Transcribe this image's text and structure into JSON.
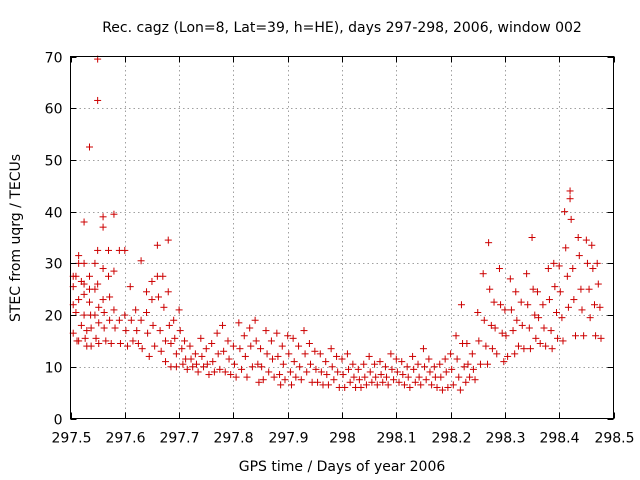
{
  "chart_data": {
    "type": "scatter",
    "title": "Rec. cagz (Lon=8, Lat=39, h=HE), days 297-298, 2006, window 002",
    "xlabel": "GPS time / Days of year 2006",
    "ylabel": "STEC from uqrg / TECUs",
    "xlim": [
      297.5,
      298.5
    ],
    "ylim": [
      0,
      70
    ],
    "xticks": [
      "297.5",
      "297.6",
      "297.7",
      "297.8",
      "297.9",
      "298",
      "298.1",
      "298.2",
      "298.3",
      "298.4",
      "298.5"
    ],
    "yticks": [
      "0",
      "10",
      "20",
      "30",
      "40",
      "50",
      "60",
      "70"
    ],
    "grid": true,
    "marker": "+",
    "color": "#cc0000",
    "points": [
      [
        297.505,
        27.5
      ],
      [
        297.505,
        25.5
      ],
      [
        297.505,
        22.0
      ],
      [
        297.505,
        16.5
      ],
      [
        297.51,
        27.5
      ],
      [
        297.51,
        20.5
      ],
      [
        297.512,
        15.0
      ],
      [
        297.515,
        31.5
      ],
      [
        297.515,
        30.0
      ],
      [
        297.515,
        23.0
      ],
      [
        297.515,
        15.0
      ],
      [
        297.52,
        26.5
      ],
      [
        297.52,
        18.0
      ],
      [
        297.525,
        38.0
      ],
      [
        297.525,
        30.0
      ],
      [
        297.525,
        26.0
      ],
      [
        297.525,
        24.0
      ],
      [
        297.525,
        20.0
      ],
      [
        297.527,
        15.5
      ],
      [
        297.53,
        17.0
      ],
      [
        297.53,
        14.0
      ],
      [
        297.535,
        52.5
      ],
      [
        297.535,
        27.5
      ],
      [
        297.535,
        25.0
      ],
      [
        297.535,
        22.5
      ],
      [
        297.537,
        20.0
      ],
      [
        297.538,
        17.5
      ],
      [
        297.538,
        14.0
      ],
      [
        297.545,
        30.0
      ],
      [
        297.545,
        25.0
      ],
      [
        297.545,
        20.0
      ],
      [
        297.547,
        15.5
      ],
      [
        297.55,
        69.5
      ],
      [
        297.55,
        61.5
      ],
      [
        297.55,
        32.5
      ],
      [
        297.55,
        26.0
      ],
      [
        297.552,
        21.5
      ],
      [
        297.552,
        18.5
      ],
      [
        297.552,
        14.5
      ],
      [
        297.56,
        39.0
      ],
      [
        297.56,
        37.0
      ],
      [
        297.56,
        29.0
      ],
      [
        297.56,
        23.0
      ],
      [
        297.562,
        20.5
      ],
      [
        297.562,
        17.5
      ],
      [
        297.565,
        15.0
      ],
      [
        297.57,
        32.5
      ],
      [
        297.57,
        27.5
      ],
      [
        297.572,
        23.5
      ],
      [
        297.572,
        19.0
      ],
      [
        297.575,
        14.5
      ],
      [
        297.58,
        39.5
      ],
      [
        297.58,
        28.5
      ],
      [
        297.58,
        21.0
      ],
      [
        297.582,
        17.5
      ],
      [
        297.59,
        32.5
      ],
      [
        297.59,
        19.0
      ],
      [
        297.592,
        14.5
      ],
      [
        297.6,
        32.5
      ],
      [
        297.6,
        20.0
      ],
      [
        297.602,
        17.0
      ],
      [
        297.605,
        14.0
      ],
      [
        297.61,
        25.5
      ],
      [
        297.612,
        19.0
      ],
      [
        297.615,
        15.0
      ],
      [
        297.62,
        21.0
      ],
      [
        297.622,
        17.0
      ],
      [
        297.625,
        14.5
      ],
      [
        297.63,
        30.5
      ],
      [
        297.63,
        19.0
      ],
      [
        297.632,
        13.5
      ],
      [
        297.64,
        24.5
      ],
      [
        297.64,
        20.5
      ],
      [
        297.642,
        16.5
      ],
      [
        297.645,
        12.0
      ],
      [
        297.65,
        26.5
      ],
      [
        297.65,
        23.0
      ],
      [
        297.652,
        18.0
      ],
      [
        297.655,
        14.0
      ],
      [
        297.66,
        33.5
      ],
      [
        297.66,
        27.5
      ],
      [
        297.662,
        23.5
      ],
      [
        297.665,
        17.0
      ],
      [
        297.667,
        13.0
      ],
      [
        297.67,
        27.5
      ],
      [
        297.672,
        21.5
      ],
      [
        297.675,
        15.0
      ],
      [
        297.675,
        11.0
      ],
      [
        297.68,
        34.5
      ],
      [
        297.68,
        24.5
      ],
      [
        297.682,
        18.0
      ],
      [
        297.685,
        14.5
      ],
      [
        297.685,
        10.0
      ],
      [
        297.69,
        19.0
      ],
      [
        297.692,
        15.5
      ],
      [
        297.695,
        12.5
      ],
      [
        297.695,
        10.0
      ],
      [
        297.7,
        21.0
      ],
      [
        297.702,
        17.0
      ],
      [
        297.705,
        13.5
      ],
      [
        297.707,
        10.5
      ],
      [
        297.71,
        15.0
      ],
      [
        297.712,
        11.5
      ],
      [
        297.715,
        9.5
      ],
      [
        297.72,
        14.0
      ],
      [
        297.722,
        11.5
      ],
      [
        297.725,
        10.0
      ],
      [
        297.73,
        12.5
      ],
      [
        297.732,
        10.5
      ],
      [
        297.735,
        9.0
      ],
      [
        297.74,
        15.5
      ],
      [
        297.742,
        12.0
      ],
      [
        297.745,
        10.0
      ],
      [
        297.75,
        13.5
      ],
      [
        297.752,
        10.5
      ],
      [
        297.755,
        8.5
      ],
      [
        297.76,
        14.5
      ],
      [
        297.762,
        11.0
      ],
      [
        297.765,
        9.0
      ],
      [
        297.77,
        16.5
      ],
      [
        297.772,
        12.5
      ],
      [
        297.775,
        9.5
      ],
      [
        297.78,
        18.0
      ],
      [
        297.782,
        13.0
      ],
      [
        297.785,
        9.0
      ],
      [
        297.79,
        15.0
      ],
      [
        297.792,
        11.5
      ],
      [
        297.795,
        8.5
      ],
      [
        297.8,
        14.0
      ],
      [
        297.802,
        10.5
      ],
      [
        297.805,
        8.0
      ],
      [
        297.81,
        18.5
      ],
      [
        297.812,
        13.5
      ],
      [
        297.815,
        9.5
      ],
      [
        297.82,
        16.0
      ],
      [
        297.822,
        12.0
      ],
      [
        297.825,
        8.0
      ],
      [
        297.83,
        17.5
      ],
      [
        297.832,
        14.0
      ],
      [
        297.835,
        10.0
      ],
      [
        297.84,
        19.0
      ],
      [
        297.842,
        15.0
      ],
      [
        297.845,
        10.5
      ],
      [
        297.847,
        7.0
      ],
      [
        297.85,
        13.5
      ],
      [
        297.852,
        10.0
      ],
      [
        297.855,
        7.5
      ],
      [
        297.86,
        17.0
      ],
      [
        297.862,
        12.5
      ],
      [
        297.865,
        9.0
      ],
      [
        297.87,
        15.0
      ],
      [
        297.872,
        11.5
      ],
      [
        297.875,
        8.0
      ],
      [
        297.88,
        16.5
      ],
      [
        297.882,
        12.0
      ],
      [
        297.885,
        8.5
      ],
      [
        297.887,
        6.5
      ],
      [
        297.89,
        14.0
      ],
      [
        297.892,
        10.5
      ],
      [
        297.895,
        7.5
      ],
      [
        297.9,
        16.0
      ],
      [
        297.902,
        12.5
      ],
      [
        297.905,
        9.0
      ],
      [
        297.907,
        6.5
      ],
      [
        297.91,
        15.5
      ],
      [
        297.912,
        11.0
      ],
      [
        297.915,
        8.0
      ],
      [
        297.92,
        14.0
      ],
      [
        297.922,
        10.0
      ],
      [
        297.925,
        7.5
      ],
      [
        297.93,
        17.0
      ],
      [
        297.932,
        12.5
      ],
      [
        297.935,
        9.0
      ],
      [
        297.94,
        14.5
      ],
      [
        297.942,
        10.5
      ],
      [
        297.945,
        7.0
      ],
      [
        297.95,
        13.0
      ],
      [
        297.952,
        9.5
      ],
      [
        297.955,
        7.0
      ],
      [
        297.96,
        12.5
      ],
      [
        297.962,
        9.0
      ],
      [
        297.965,
        6.5
      ],
      [
        297.97,
        11.0
      ],
      [
        297.972,
        8.5
      ],
      [
        297.975,
        6.5
      ],
      [
        297.98,
        13.5
      ],
      [
        297.982,
        10.0
      ],
      [
        297.985,
        7.5
      ],
      [
        297.99,
        12.0
      ],
      [
        297.992,
        9.0
      ],
      [
        297.995,
        6.0
      ],
      [
        298.0,
        11.5
      ],
      [
        298.002,
        8.5
      ],
      [
        298.005,
        6.0
      ],
      [
        298.01,
        12.5
      ],
      [
        298.012,
        9.5
      ],
      [
        298.015,
        7.0
      ],
      [
        298.02,
        10.5
      ],
      [
        298.022,
        8.0
      ],
      [
        298.025,
        6.0
      ],
      [
        298.03,
        9.5
      ],
      [
        298.032,
        7.5
      ],
      [
        298.035,
        6.0
      ],
      [
        298.04,
        10.5
      ],
      [
        298.042,
        8.0
      ],
      [
        298.045,
        6.5
      ],
      [
        298.05,
        12.0
      ],
      [
        298.052,
        9.0
      ],
      [
        298.055,
        7.0
      ],
      [
        298.06,
        10.5
      ],
      [
        298.062,
        8.0
      ],
      [
        298.065,
        6.5
      ],
      [
        298.07,
        11.0
      ],
      [
        298.072,
        8.5
      ],
      [
        298.075,
        7.0
      ],
      [
        298.08,
        10.0
      ],
      [
        298.082,
        8.0
      ],
      [
        298.085,
        6.5
      ],
      [
        298.09,
        12.5
      ],
      [
        298.092,
        9.5
      ],
      [
        298.095,
        7.5
      ],
      [
        298.1,
        11.5
      ],
      [
        298.102,
        9.0
      ],
      [
        298.105,
        7.0
      ],
      [
        298.11,
        11.0
      ],
      [
        298.112,
        8.5
      ],
      [
        298.115,
        6.5
      ],
      [
        298.12,
        10.0
      ],
      [
        298.122,
        8.0
      ],
      [
        298.125,
        6.0
      ],
      [
        298.13,
        12.0
      ],
      [
        298.132,
        9.5
      ],
      [
        298.135,
        7.0
      ],
      [
        298.14,
        10.5
      ],
      [
        298.142,
        8.0
      ],
      [
        298.145,
        6.5
      ],
      [
        298.15,
        13.5
      ],
      [
        298.152,
        10.0
      ],
      [
        298.155,
        7.5
      ],
      [
        298.16,
        11.5
      ],
      [
        298.162,
        9.0
      ],
      [
        298.165,
        6.5
      ],
      [
        298.17,
        10.0
      ],
      [
        298.172,
        8.0
      ],
      [
        298.175,
        6.0
      ],
      [
        298.18,
        10.5
      ],
      [
        298.182,
        8.0
      ],
      [
        298.185,
        5.5
      ],
      [
        298.19,
        11.5
      ],
      [
        298.192,
        9.0
      ],
      [
        298.195,
        6.0
      ],
      [
        298.2,
        12.5
      ],
      [
        298.202,
        9.5
      ],
      [
        298.205,
        6.5
      ],
      [
        298.21,
        16.0
      ],
      [
        298.212,
        11.5
      ],
      [
        298.215,
        8.0
      ],
      [
        298.218,
        5.5
      ],
      [
        298.22,
        22.0
      ],
      [
        298.222,
        14.5
      ],
      [
        298.225,
        10.0
      ],
      [
        298.228,
        7.0
      ],
      [
        298.23,
        14.5
      ],
      [
        298.232,
        10.5
      ],
      [
        298.235,
        8.0
      ],
      [
        298.24,
        12.5
      ],
      [
        298.242,
        9.5
      ],
      [
        298.245,
        7.5
      ],
      [
        298.25,
        20.5
      ],
      [
        298.252,
        15.0
      ],
      [
        298.255,
        10.5
      ],
      [
        298.26,
        28.0
      ],
      [
        298.262,
        19.0
      ],
      [
        298.265,
        14.0
      ],
      [
        298.268,
        10.5
      ],
      [
        298.27,
        34.0
      ],
      [
        298.272,
        25.0
      ],
      [
        298.275,
        18.0
      ],
      [
        298.277,
        13.5
      ],
      [
        298.28,
        22.5
      ],
      [
        298.282,
        17.5
      ],
      [
        298.285,
        12.5
      ],
      [
        298.29,
        29.0
      ],
      [
        298.292,
        22.0
      ],
      [
        298.295,
        16.5
      ],
      [
        298.298,
        11.0
      ],
      [
        298.3,
        21.0
      ],
      [
        298.302,
        16.0
      ],
      [
        298.305,
        12.0
      ],
      [
        298.31,
        27.0
      ],
      [
        298.312,
        21.0
      ],
      [
        298.315,
        17.0
      ],
      [
        298.318,
        12.5
      ],
      [
        298.32,
        24.5
      ],
      [
        298.322,
        19.0
      ],
      [
        298.325,
        14.0
      ],
      [
        298.33,
        22.5
      ],
      [
        298.332,
        18.0
      ],
      [
        298.335,
        13.5
      ],
      [
        298.34,
        28.0
      ],
      [
        298.342,
        22.0
      ],
      [
        298.345,
        17.5
      ],
      [
        298.347,
        13.5
      ],
      [
        298.35,
        35.0
      ],
      [
        298.352,
        25.0
      ],
      [
        298.355,
        20.0
      ],
      [
        298.357,
        15.5
      ],
      [
        298.36,
        24.5
      ],
      [
        298.362,
        19.5
      ],
      [
        298.365,
        14.5
      ],
      [
        298.37,
        22.0
      ],
      [
        298.372,
        17.5
      ],
      [
        298.375,
        14.0
      ],
      [
        298.38,
        29.0
      ],
      [
        298.382,
        23.0
      ],
      [
        298.385,
        17.0
      ],
      [
        298.387,
        13.5
      ],
      [
        298.39,
        30.0
      ],
      [
        298.392,
        25.5
      ],
      [
        298.395,
        20.5
      ],
      [
        298.397,
        15.5
      ],
      [
        298.4,
        29.5
      ],
      [
        298.402,
        24.5
      ],
      [
        298.405,
        19.5
      ],
      [
        298.407,
        15.0
      ],
      [
        298.41,
        40.0
      ],
      [
        298.412,
        33.0
      ],
      [
        298.415,
        27.5
      ],
      [
        298.417,
        21.5
      ],
      [
        298.42,
        44.0
      ],
      [
        298.42,
        42.5
      ],
      [
        298.422,
        38.5
      ],
      [
        298.425,
        29.0
      ],
      [
        298.427,
        23.0
      ],
      [
        298.43,
        16.0
      ],
      [
        298.435,
        35.0
      ],
      [
        298.437,
        31.5
      ],
      [
        298.44,
        25.0
      ],
      [
        298.442,
        21.0
      ],
      [
        298.445,
        16.0
      ],
      [
        298.45,
        34.5
      ],
      [
        298.452,
        30.0
      ],
      [
        298.455,
        25.0
      ],
      [
        298.457,
        19.5
      ],
      [
        298.46,
        33.5
      ],
      [
        298.462,
        29.0
      ],
      [
        298.465,
        22.0
      ],
      [
        298.467,
        16.0
      ],
      [
        298.47,
        30.0
      ],
      [
        298.472,
        26.0
      ],
      [
        298.475,
        21.5
      ],
      [
        298.477,
        15.5
      ]
    ]
  }
}
